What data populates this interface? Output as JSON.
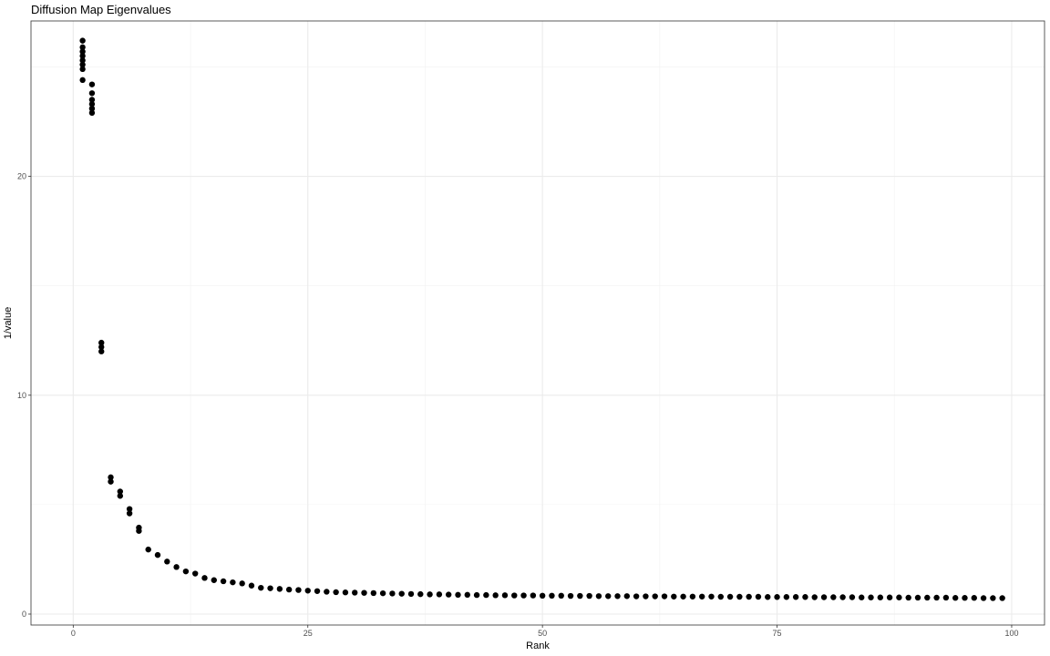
{
  "chart_data": {
    "type": "scatter",
    "title": "Diffusion Map Eigenvalues",
    "xlabel": "Rank",
    "ylabel": "1/value",
    "xlim": [
      -4.5,
      103.5
    ],
    "ylim": [
      -0.5,
      27.1
    ],
    "x_ticks": [
      0,
      25,
      50,
      75,
      100
    ],
    "y_ticks": [
      0,
      10,
      20
    ],
    "grid": true,
    "legend": "none",
    "point_color": "#000000",
    "points": [
      [
        1,
        26.2
      ],
      [
        1,
        25.9
      ],
      [
        1,
        25.7
      ],
      [
        1,
        25.5
      ],
      [
        1,
        25.3
      ],
      [
        1,
        25.1
      ],
      [
        1,
        24.9
      ],
      [
        1,
        24.4
      ],
      [
        2,
        24.2
      ],
      [
        2,
        23.8
      ],
      [
        2,
        23.5
      ],
      [
        2,
        23.3
      ],
      [
        2,
        23.1
      ],
      [
        2,
        22.9
      ],
      [
        3,
        12.4
      ],
      [
        3,
        12.2
      ],
      [
        3,
        12.0
      ],
      [
        4,
        6.25
      ],
      [
        4,
        6.05
      ],
      [
        5,
        5.6
      ],
      [
        5,
        5.4
      ],
      [
        6,
        4.8
      ],
      [
        6,
        4.6
      ],
      [
        7,
        3.95
      ],
      [
        7,
        3.8
      ],
      [
        8,
        2.95
      ],
      [
        9,
        2.7
      ],
      [
        10,
        2.4
      ],
      [
        11,
        2.15
      ],
      [
        12,
        1.95
      ],
      [
        13,
        1.85
      ],
      [
        14,
        1.65
      ],
      [
        15,
        1.55
      ],
      [
        16,
        1.5
      ],
      [
        17,
        1.45
      ],
      [
        18,
        1.4
      ],
      [
        19,
        1.3
      ],
      [
        20,
        1.2
      ],
      [
        21,
        1.18
      ],
      [
        22,
        1.15
      ],
      [
        23,
        1.12
      ],
      [
        24,
        1.1
      ],
      [
        25,
        1.07
      ],
      [
        26,
        1.05
      ],
      [
        27,
        1.02
      ],
      [
        28,
        1.0
      ],
      [
        29,
        0.99
      ],
      [
        30,
        0.98
      ],
      [
        31,
        0.97
      ],
      [
        32,
        0.96
      ],
      [
        33,
        0.95
      ],
      [
        34,
        0.94
      ],
      [
        35,
        0.93
      ],
      [
        36,
        0.92
      ],
      [
        37,
        0.91
      ],
      [
        38,
        0.9
      ],
      [
        39,
        0.9
      ],
      [
        40,
        0.89
      ],
      [
        41,
        0.88
      ],
      [
        42,
        0.88
      ],
      [
        43,
        0.87
      ],
      [
        44,
        0.87
      ],
      [
        45,
        0.86
      ],
      [
        46,
        0.86
      ],
      [
        47,
        0.85
      ],
      [
        48,
        0.85
      ],
      [
        49,
        0.85
      ],
      [
        50,
        0.84
      ],
      [
        51,
        0.84
      ],
      [
        52,
        0.84
      ],
      [
        53,
        0.83
      ],
      [
        54,
        0.83
      ],
      [
        55,
        0.83
      ],
      [
        56,
        0.82
      ],
      [
        57,
        0.82
      ],
      [
        58,
        0.82
      ],
      [
        59,
        0.82
      ],
      [
        60,
        0.81
      ],
      [
        61,
        0.81
      ],
      [
        62,
        0.81
      ],
      [
        63,
        0.81
      ],
      [
        64,
        0.8
      ],
      [
        65,
        0.8
      ],
      [
        66,
        0.8
      ],
      [
        67,
        0.8
      ],
      [
        68,
        0.8
      ],
      [
        69,
        0.79
      ],
      [
        70,
        0.79
      ],
      [
        71,
        0.79
      ],
      [
        72,
        0.79
      ],
      [
        73,
        0.79
      ],
      [
        74,
        0.78
      ],
      [
        75,
        0.78
      ],
      [
        76,
        0.78
      ],
      [
        77,
        0.78
      ],
      [
        78,
        0.78
      ],
      [
        79,
        0.77
      ],
      [
        80,
        0.77
      ],
      [
        81,
        0.77
      ],
      [
        82,
        0.77
      ],
      [
        83,
        0.77
      ],
      [
        84,
        0.76
      ],
      [
        85,
        0.76
      ],
      [
        86,
        0.76
      ],
      [
        87,
        0.76
      ],
      [
        88,
        0.76
      ],
      [
        89,
        0.75
      ],
      [
        90,
        0.75
      ],
      [
        91,
        0.75
      ],
      [
        92,
        0.75
      ],
      [
        93,
        0.75
      ],
      [
        94,
        0.74
      ],
      [
        95,
        0.74
      ],
      [
        96,
        0.74
      ],
      [
        97,
        0.73
      ],
      [
        98,
        0.73
      ],
      [
        99,
        0.73
      ]
    ]
  }
}
